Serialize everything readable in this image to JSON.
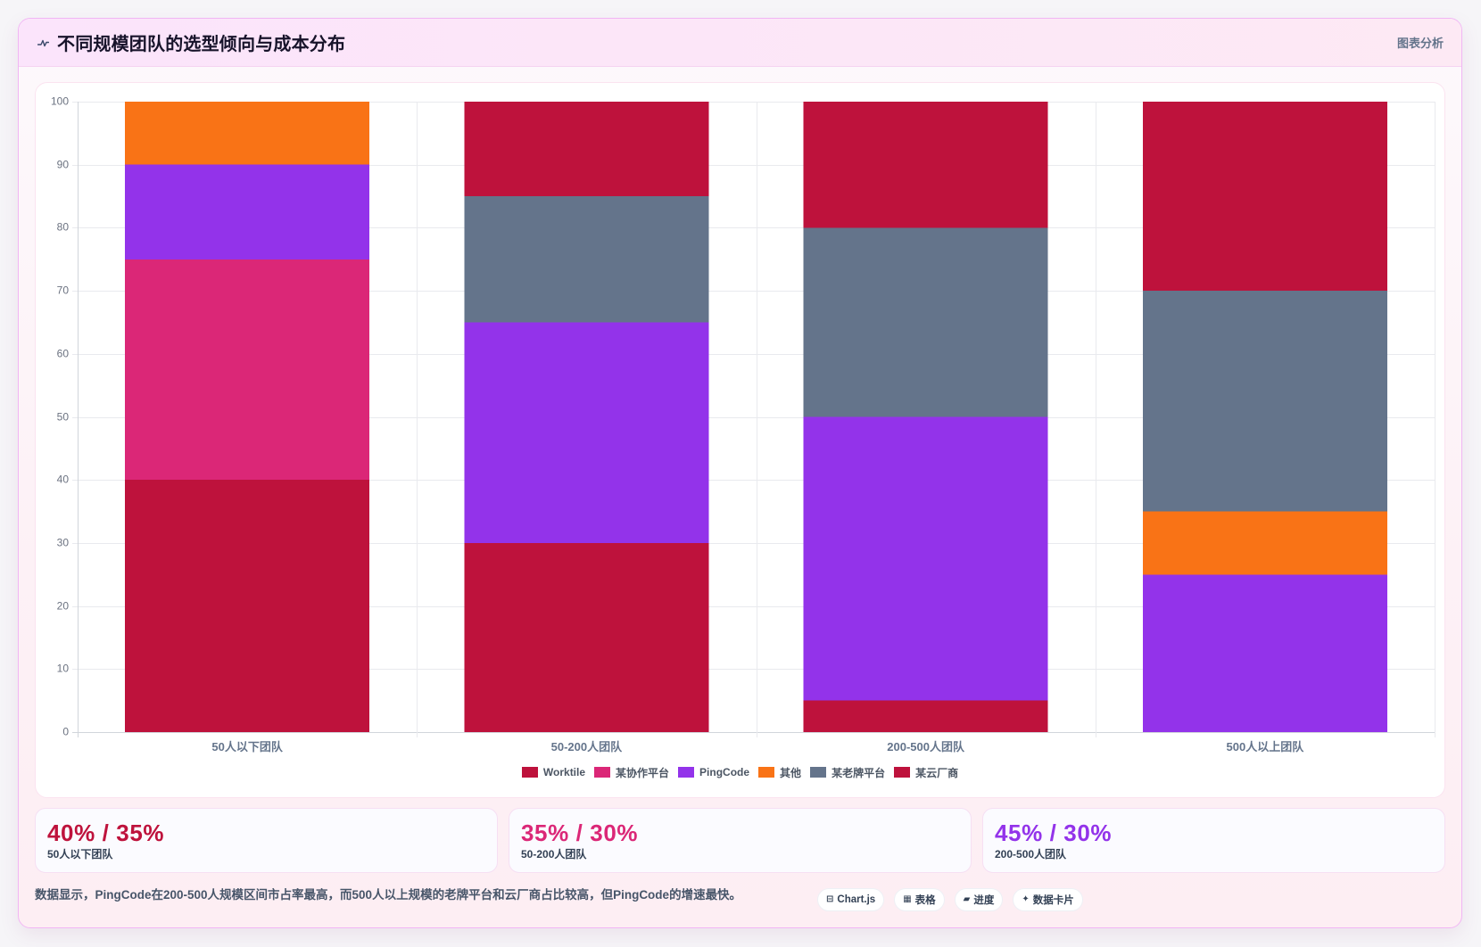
{
  "header": {
    "icon": "trend-icon",
    "badge": "图表分析"
  },
  "chart_data": {
    "type": "bar",
    "stacked": true,
    "title": "不同规模团队的选型倾向与成本分布",
    "categories": [
      "50人以下团队",
      "50-200人团队",
      "200-500人团队",
      "500人以上团队"
    ],
    "series": [
      {
        "name": "Worktile",
        "color": "#be123c",
        "values": [
          40,
          30,
          5,
          0
        ]
      },
      {
        "name": "某协作平台",
        "color": "#db2777",
        "values": [
          35,
          0,
          0,
          0
        ]
      },
      {
        "name": "PingCode",
        "color": "#9333ea",
        "values": [
          15,
          35,
          45,
          25
        ]
      },
      {
        "name": "其他",
        "color": "#f97316",
        "values": [
          10,
          0,
          0,
          10
        ]
      },
      {
        "name": "某老牌平台",
        "color": "#64748b",
        "values": [
          0,
          20,
          30,
          35
        ]
      },
      {
        "name": "某云厂商",
        "color": "#be123c",
        "values": [
          0,
          15,
          20,
          30
        ]
      }
    ],
    "ylim": [
      0,
      100
    ],
    "yticks": [
      0,
      10,
      20,
      30,
      40,
      50,
      60,
      70,
      80,
      90,
      100
    ],
    "grid": true,
    "legend": "bottom"
  },
  "stats": [
    {
      "value": "40% / 35%",
      "label": "50人以下团队",
      "color": "#be123c"
    },
    {
      "value": "35% / 30%",
      "label": "50-200人团队",
      "color": "#db2777"
    },
    {
      "value": "45% / 30%",
      "label": "200-500人团队",
      "color": "#9333ea"
    }
  ],
  "footer": {
    "note": "数据显示，PingCode在200-500人规模区间市占率最高，而500人以上规模的老牌平台和云厂商占比较高，但PingCode的增速最快。",
    "chips": [
      {
        "icon": "chart-icon",
        "label": "Chart.js"
      },
      {
        "icon": "table-icon",
        "label": "表格"
      },
      {
        "icon": "progress-icon",
        "label": "进度"
      },
      {
        "icon": "sparkle-icon",
        "label": "数据卡片"
      }
    ]
  }
}
